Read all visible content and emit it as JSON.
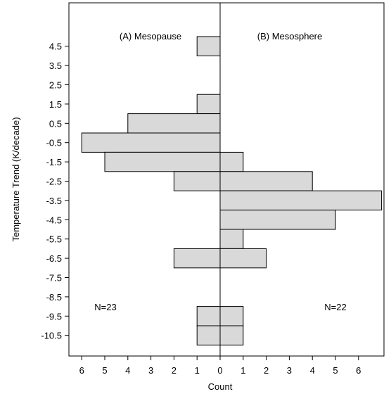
{
  "chart_data": {
    "type": "bar",
    "orientation": "horizontal",
    "xlabel": "Count",
    "ylabel": "Temperature Trend (K/decade)",
    "y_categories": [
      "4.5",
      "3.5",
      "2.5",
      "1.5",
      "0.5",
      "-0.5",
      "-1.5",
      "-2.5",
      "-3.5",
      "-4.5",
      "-5.5",
      "-6.5",
      "-7.5",
      "-8.5",
      "-9.5",
      "-10.5"
    ],
    "x_tick_labels_left": [
      "6",
      "5",
      "4",
      "3",
      "2",
      "1",
      "0"
    ],
    "x_tick_labels_right": [
      "1",
      "2",
      "3",
      "4",
      "5",
      "6"
    ],
    "series": [
      {
        "name": "(A) Mesopause",
        "direction": "left",
        "n_label": "N=23",
        "bins": [
          {
            "y": 4.5,
            "count": 1
          },
          {
            "y": 1.5,
            "count": 1
          },
          {
            "y": 0.5,
            "count": 4
          },
          {
            "y": -0.5,
            "count": 6
          },
          {
            "y": -1.5,
            "count": 5
          },
          {
            "y": -2.5,
            "count": 2
          },
          {
            "y": -6.5,
            "count": 2
          },
          {
            "y": -9.5,
            "count": 1
          },
          {
            "y": -10.5,
            "count": 1
          }
        ]
      },
      {
        "name": "(B) Mesosphere",
        "direction": "right",
        "n_label": "N=22",
        "bins": [
          {
            "y": -1.5,
            "count": 1
          },
          {
            "y": -2.5,
            "count": 4
          },
          {
            "y": -3.5,
            "count": 7
          },
          {
            "y": -4.5,
            "count": 5
          },
          {
            "y": -5.5,
            "count": 1
          },
          {
            "y": -6.5,
            "count": 2
          },
          {
            "y": -9.5,
            "count": 1
          },
          {
            "y": -10.5,
            "count": 1
          }
        ]
      }
    ],
    "grid": false
  }
}
